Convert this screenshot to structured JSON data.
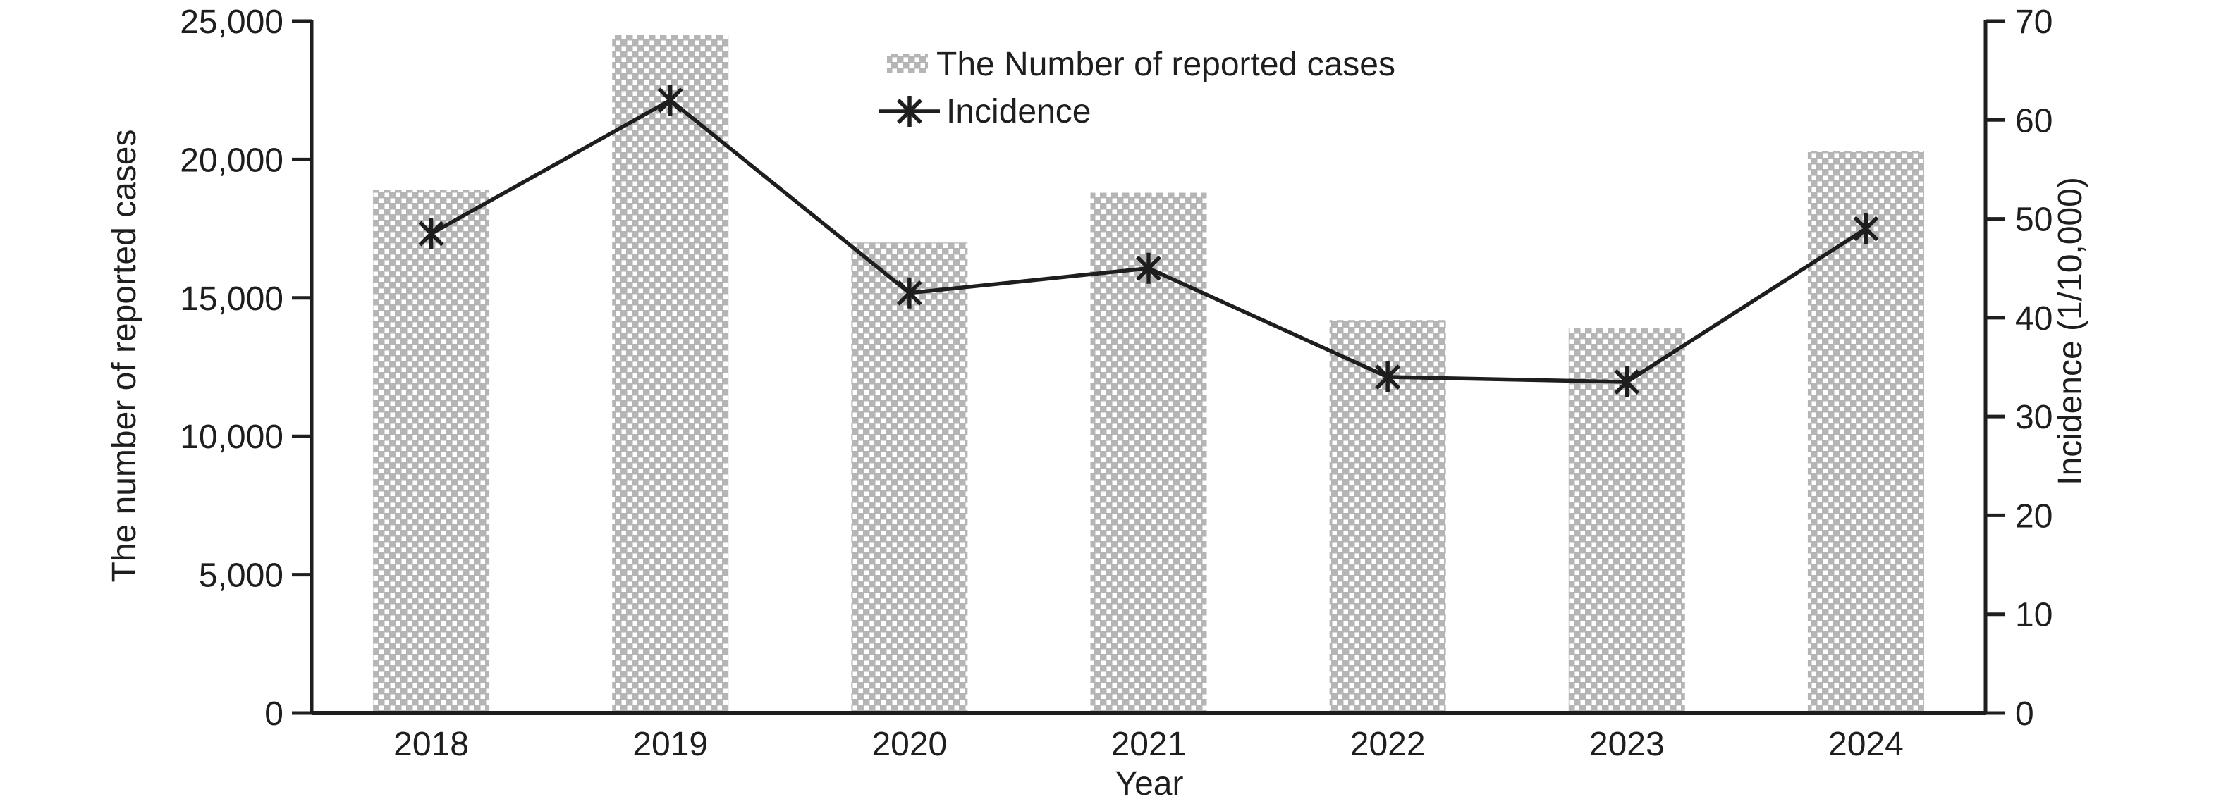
{
  "figure": {
    "background": "#ffffff",
    "text_color": "#1e1e1e",
    "line_color": "#1e1e1e",
    "bar_fill_base": "#b5b5b5",
    "bar_dot_color": "#ffffff"
  },
  "legend": {
    "bar_label": "The Number of reported cases",
    "line_label": "Incidence"
  },
  "chart_data": {
    "type": "bar",
    "subtype": "bar+line combo, dual y-axes",
    "categories": [
      "2018",
      "2019",
      "2020",
      "2021",
      "2022",
      "2023",
      "2024"
    ],
    "series": [
      {
        "name": "The Number of reported cases",
        "kind": "bar",
        "axis": "left",
        "fill": "gray with white dot pattern",
        "values": [
          18900,
          24500,
          17000,
          18800,
          14200,
          13900,
          20300
        ]
      },
      {
        "name": "Incidence",
        "kind": "line",
        "axis": "right",
        "marker": "asterisk",
        "color": "#1e1e1e",
        "values": [
          48.5,
          62,
          42.5,
          45,
          34,
          33.5,
          49
        ]
      }
    ],
    "title": "",
    "xlabel": "Year",
    "ylabel_left": "The number of reported cases",
    "ylabel_right": "Incidence (1/10,000)",
    "ylim_left": [
      0,
      25000
    ],
    "ytick_step_left": 5000,
    "yticks_left": [
      "0",
      "5,000",
      "10,000",
      "15,000",
      "20,000",
      "25,000"
    ],
    "ylim_right": [
      0,
      70
    ],
    "ytick_step_right": 10,
    "yticks_right": [
      "0",
      "10",
      "20",
      "30",
      "40",
      "50",
      "60",
      "70"
    ],
    "grid": false,
    "legend_position": "top-center"
  }
}
